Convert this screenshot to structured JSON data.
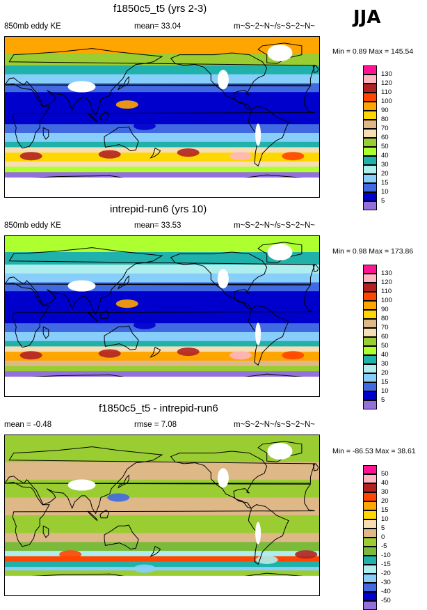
{
  "season": "JJA",
  "panels": [
    {
      "title": "f1850c5_t5 (yrs 2-3)",
      "left": "850mb eddy KE",
      "center": "mean=  33.04",
      "right": "m~S~2~N~/s~S~2~N~",
      "minmax": "Min =   0.89 Max = 145.54",
      "field": "ke_a",
      "legend": {
        "labels": [
          "130",
          "120",
          "110",
          "100",
          "90",
          "80",
          "70",
          "60",
          "50",
          "40",
          "30",
          "20",
          "15",
          "10",
          "5"
        ],
        "colors": [
          "#ff1493",
          "#ffb6c1",
          "#b22222",
          "#ff4500",
          "#ffa500",
          "#ffd700",
          "#deb887",
          "#f5deb3",
          "#9acd32",
          "#adff2f",
          "#20b2aa",
          "#afeeee",
          "#87cefa",
          "#4169e1",
          "#0000cd",
          "#9370db"
        ]
      }
    },
    {
      "title": "intrepid-run6 (yrs 10)",
      "left": "850mb eddy KE",
      "center": "mean=  33.53",
      "right": "m~S~2~N~/s~S~2~N~",
      "minmax": "Min =   0.98 Max = 173.86",
      "field": "ke_b",
      "legend": {
        "labels": [
          "130",
          "120",
          "110",
          "100",
          "90",
          "80",
          "70",
          "60",
          "50",
          "40",
          "30",
          "20",
          "15",
          "10",
          "5"
        ],
        "colors": [
          "#ff1493",
          "#ffb6c1",
          "#b22222",
          "#ff4500",
          "#ffa500",
          "#ffd700",
          "#deb887",
          "#f5deb3",
          "#9acd32",
          "#adff2f",
          "#20b2aa",
          "#afeeee",
          "#87cefa",
          "#4169e1",
          "#0000cd",
          "#9370db"
        ]
      }
    },
    {
      "title": "f1850c5_t5 - intrepid-run6",
      "left": "mean =  -0.48",
      "center": "rmse =   7.08",
      "right": "m~S~2~N~/s~S~2~N~",
      "minmax": "Min = -86.53 Max =  38.61",
      "field": "diff",
      "legend": {
        "labels": [
          "50",
          "40",
          "30",
          "20",
          "15",
          "10",
          "5",
          "0",
          "-5",
          "-10",
          "-15",
          "-20",
          "-30",
          "-40",
          "-50"
        ],
        "colors": [
          "#ff1493",
          "#ffb6c1",
          "#b22222",
          "#ff4500",
          "#ffa500",
          "#ffd700",
          "#f5deb3",
          "#deb887",
          "#9acd32",
          "#7cba3c",
          "#20b2aa",
          "#afeeee",
          "#87cefa",
          "#4169e1",
          "#0000cd",
          "#9370db"
        ]
      }
    }
  ]
}
